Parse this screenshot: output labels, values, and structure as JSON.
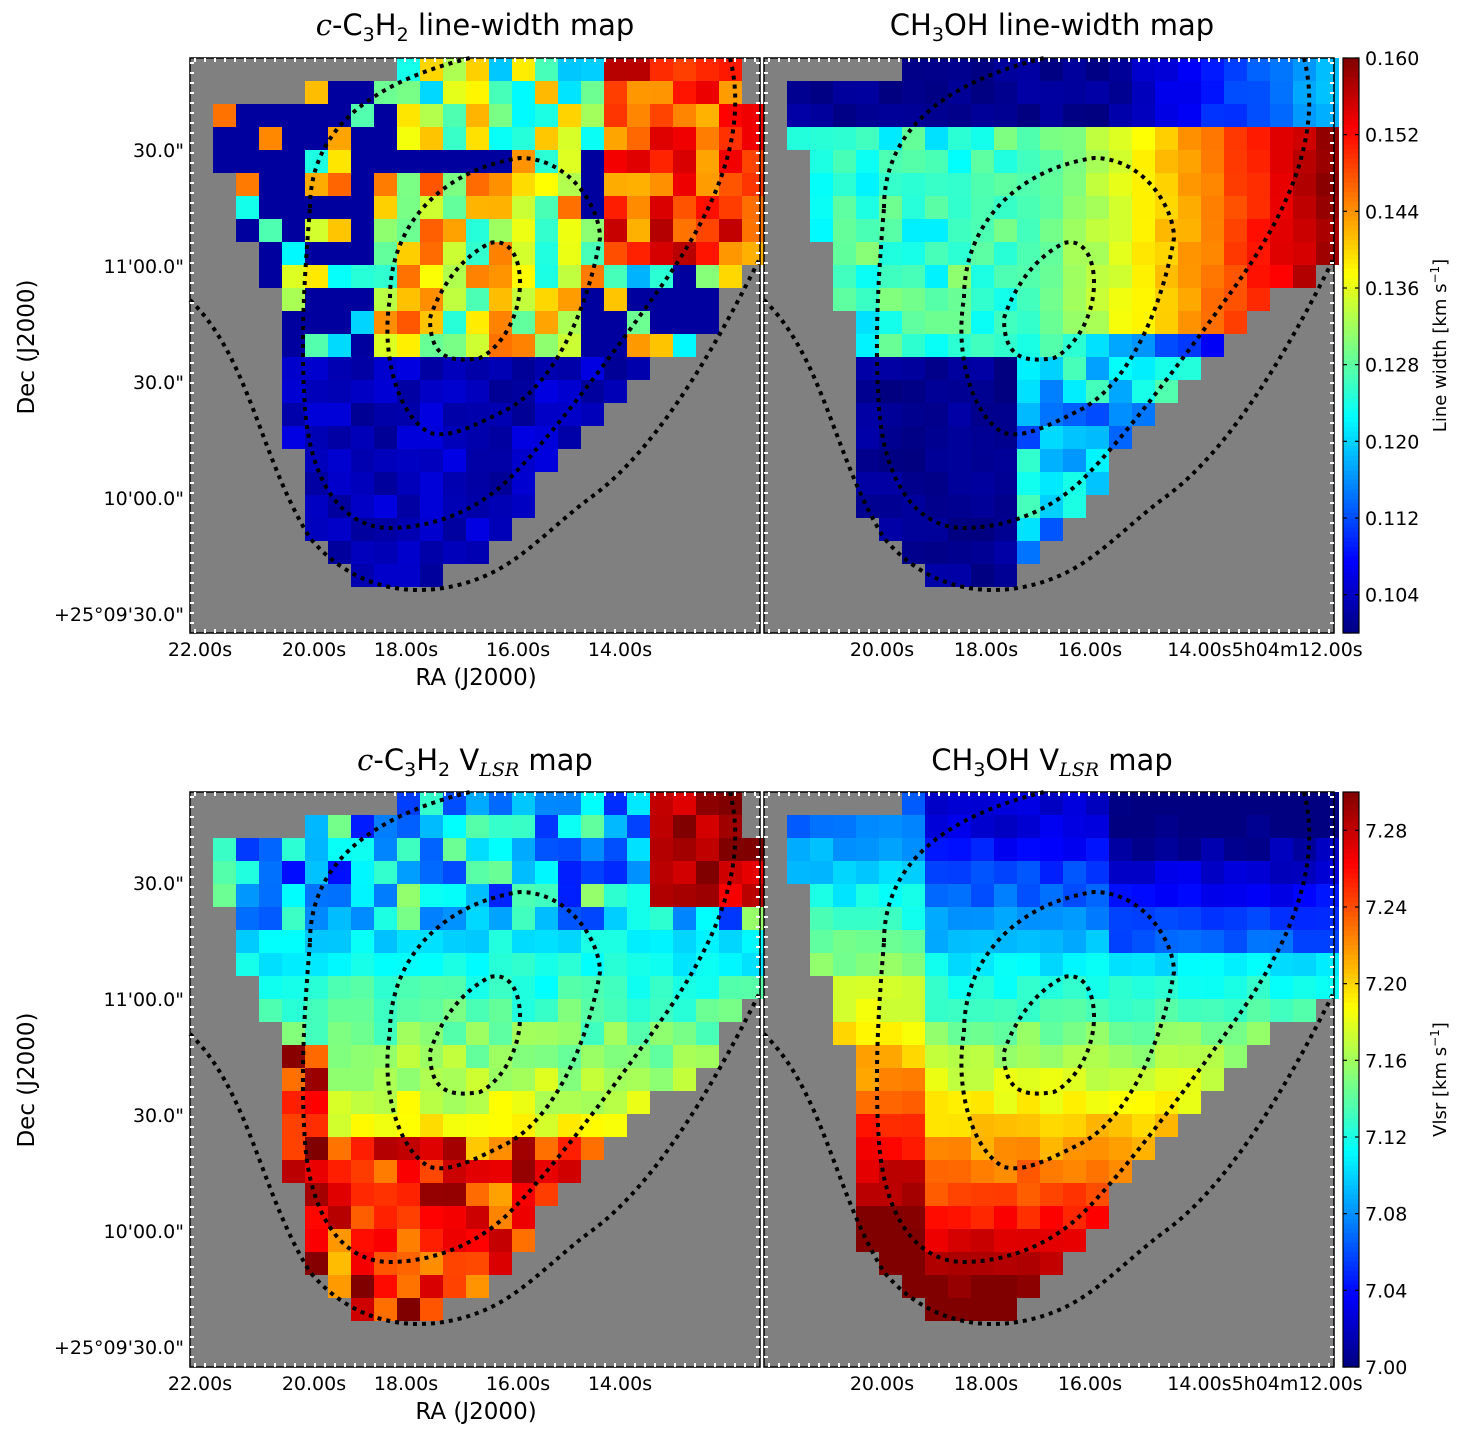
{
  "figure": {
    "panels": [
      {
        "id": "cc3h2-width",
        "title_main": "c",
        "title_rest": "-C",
        "title_sub1": "3",
        "title_mid": "H",
        "title_sub2": "2",
        "title_tail": " line-width map",
        "kind": "width"
      },
      {
        "id": "ch3oh-width",
        "title_main": "",
        "title_rest": "CH",
        "title_sub1": "3",
        "title_mid": "OH",
        "title_sub2": "",
        "title_tail": " line-width map",
        "kind": "width"
      },
      {
        "id": "cc3h2-vlsr",
        "title_main": "c",
        "title_rest": "-C",
        "title_sub1": "3",
        "title_mid": "H",
        "title_sub2": "2",
        "title_tail": " V",
        "title_lsr": "LSR",
        "title_end": " map",
        "kind": "vlsr"
      },
      {
        "id": "ch3oh-vlsr",
        "title_main": "",
        "title_rest": "CH",
        "title_sub1": "3",
        "title_mid": "OH",
        "title_sub2": "",
        "title_tail": " V",
        "title_lsr": "LSR",
        "title_end": " map",
        "kind": "vlsr"
      }
    ],
    "dec_ticks": [
      "30.0\"",
      "11'00.0\"",
      "30.0\"",
      "10'00.0\"",
      "+25°09'30.0\""
    ],
    "ra_ticks_left": [
      "22.00s",
      "20.00s",
      "18.00s",
      "16.00s",
      "14.00s"
    ],
    "ra_ticks_right": [
      "20.00s",
      "18.00s",
      "16.00s",
      "14.00s5h04m12.00s"
    ],
    "xlabel": "RA (J2000)",
    "ylabel": "Dec (J2000)"
  },
  "colorbars": {
    "width": {
      "label": "Line width [km s",
      "label_sup": "−1",
      "label_end": "]",
      "ticks": [
        "0.160",
        "0.152",
        "0.144",
        "0.136",
        "0.128",
        "0.120",
        "0.112",
        "0.104"
      ],
      "tick_values": [
        0.16,
        0.152,
        0.144,
        0.136,
        0.128,
        0.12,
        0.112,
        0.104
      ],
      "range": [
        0.1,
        0.16
      ]
    },
    "vlsr": {
      "label": "Vlsr [km s",
      "label_sup": "−1",
      "label_end": "]",
      "ticks": [
        "7.28",
        "7.24",
        "7.20",
        "7.16",
        "7.12",
        "7.08",
        "7.04",
        "7.00"
      ],
      "tick_values": [
        7.28,
        7.24,
        7.2,
        7.16,
        7.12,
        7.08,
        7.04,
        7.0
      ],
      "range": [
        7.0,
        7.3
      ]
    }
  },
  "colors": {
    "background": "#808080",
    "contour": "#000000",
    "colormap": "jet"
  },
  "chart_data": [
    {
      "type": "heatmap",
      "title": "c-C3H2 line-width map",
      "xlabel": "RA (J2000)",
      "ylabel": "Dec (J2000)",
      "colorbar_label": "Line width [km s^-1]",
      "colorbar_range": [
        0.1,
        0.16
      ],
      "x_ticks": [
        "22.00s",
        "20.00s",
        "18.00s",
        "16.00s",
        "14.00s"
      ],
      "y_ticks": [
        "30.0\"",
        "11'00.0\"",
        "30.0\"",
        "10'00.0\"",
        "+25°09'30.0\""
      ],
      "grid": false,
      "legend": "none",
      "rows": [
        "..................*...*****.*****.",
        "....aaaaa...**.aa.bbbdcc**fffcc.b*",
        "...aaaaaaa.*.**b.aebbcffefffffe.ef",
        "...aaaaaaaaaa.bbcddeddfff*ffee.ccbb",
        "...f.aaaaaacabbcdeedeeffefffeeea.ccd",
        "...a.aaaaabbbbbcddeeedcfeeeffdeaf.fg",
        "......caaaccbbbdddeeeeeeefefcba.aac.",
        "........ccdbdbdddeedeeeeeeefbaaaaa..",
        ".....aadeeeeeeeeeeeeedddeeffbaaaaf..",
        ".....dcccbbcdeeeeecccdddbabaeea.f...",
        ".....bbbabbdbcccdcccccbbbaccabaa....",
        ".....aaaaaaaaeeeeeeeeeeeeeaaaa......",
        "......aaaaaaaaaaaeeeeeaaaaaba.......",
        ".......aaaaaaaaaaaaaaaaaaaaa........",
        ".......aaaaaaaaaaaaaaaaaaa..........",
        ".......aaaaaaaaaaaaaaaaaa...........",
        ".......aaaaaaaaaaaaaaaa.............",
        ".......aaaaaaaaaaaaaaa..............",
        "........aaaaaaaaaaaaa...............",
        "..........aaaaaaaaaa................",
        "...........aaaaaaa.................."
      ],
      "value_key": {
        "a": 0.101,
        "b": 0.114,
        "c": 0.124,
        "d": 0.131,
        "e": 0.139,
        "f": 0.148,
        "g": 0.158,
        "*": 0.101
      }
    },
    {
      "type": "heatmap",
      "title": "CH3OH line-width map",
      "xlabel": "",
      "ylabel": "",
      "colorbar_label": "Line width [km s^-1]",
      "colorbar_range": [
        0.1,
        0.16
      ],
      "x_ticks": [
        "20.00s",
        "18.00s",
        "16.00s",
        "14.00s5h04m12.00s"
      ],
      "grid": false,
      "legend": "none"
    },
    {
      "type": "heatmap",
      "title": "c-C3H2 VLSR map",
      "xlabel": "RA (J2000)",
      "ylabel": "Dec (J2000)",
      "colorbar_label": "Vlsr [km s^-1]",
      "colorbar_range": [
        7.0,
        7.3
      ],
      "x_ticks": [
        "22.00s",
        "20.00s",
        "18.00s",
        "16.00s",
        "14.00s"
      ],
      "y_ticks": [
        "30.0\"",
        "11'00.0\"",
        "30.0\"",
        "10'00.0\"",
        "+25°09'30.0\""
      ],
      "grid": false,
      "legend": "none"
    },
    {
      "type": "heatmap",
      "title": "CH3OH VLSR map",
      "xlabel": "",
      "ylabel": "",
      "colorbar_label": "Vlsr [km s^-1]",
      "colorbar_range": [
        7.0,
        7.3
      ],
      "x_ticks": [
        "20.00s",
        "18.00s",
        "16.00s",
        "14.00s5h04m12.00s"
      ],
      "grid": false,
      "legend": "none"
    }
  ]
}
